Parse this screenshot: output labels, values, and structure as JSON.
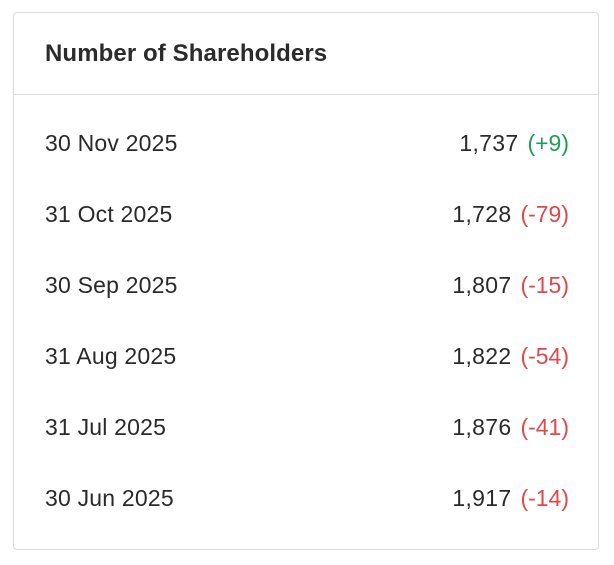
{
  "card": {
    "title": "Number of Shareholders",
    "rows": [
      {
        "date": "30 Nov 2025",
        "count": "1,737",
        "change": "(+9)",
        "direction": "up"
      },
      {
        "date": "31 Oct 2025",
        "count": "1,728",
        "change": "(-79)",
        "direction": "down"
      },
      {
        "date": "30 Sep 2025",
        "count": "1,807",
        "change": "(-15)",
        "direction": "down"
      },
      {
        "date": "31 Aug 2025",
        "count": "1,822",
        "change": "(-54)",
        "direction": "down"
      },
      {
        "date": "31 Jul 2025",
        "count": "1,876",
        "change": "(-41)",
        "direction": "down"
      },
      {
        "date": "30 Jun 2025",
        "count": "1,917",
        "change": "(-14)",
        "direction": "down"
      }
    ]
  },
  "colors": {
    "positive": "#1e9e58",
    "negative": "#e0484b",
    "border": "#dcdcdc",
    "text": "#2a2a2a"
  }
}
